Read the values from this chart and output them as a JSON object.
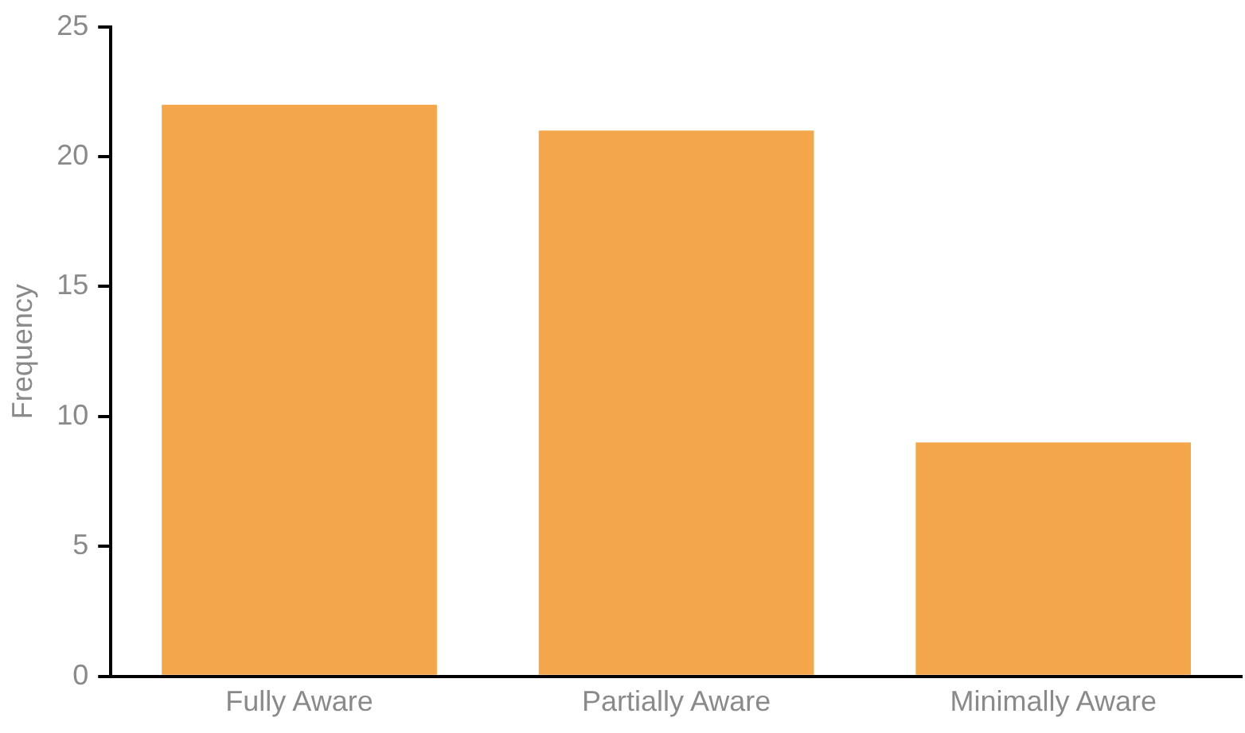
{
  "chart_data": {
    "type": "bar",
    "ylabel": "Frequency",
    "categories": [
      "Fully Aware",
      "Partially Aware",
      "Minimally Aware"
    ],
    "values": [
      22,
      21,
      9
    ],
    "color": "#f4a74a",
    "ylim": [
      0,
      25
    ],
    "yticks": [
      0,
      5,
      10,
      15,
      20,
      25
    ],
    "grid": false,
    "legend": false
  }
}
